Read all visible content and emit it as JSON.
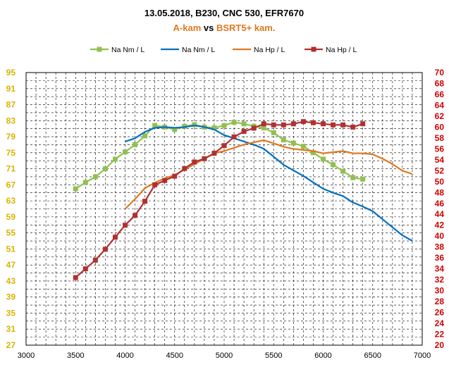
{
  "chart_data": {
    "type": "line",
    "title": "13.05.2018, B230, CNC 530, EFR7670",
    "subtitle": {
      "part1": "A-kam",
      "part2": " vs ",
      "part3": "BSRT5+ kam."
    },
    "xlim": [
      3000,
      7000
    ],
    "x_ticks": [
      "3000",
      "3500",
      "4000",
      "4500",
      "5000",
      "5500",
      "6000",
      "6500",
      "7000"
    ],
    "ylim_left": [
      27,
      95
    ],
    "y_ticks_left": [
      "27",
      "31",
      "35",
      "39",
      "43",
      "47",
      "51",
      "55",
      "59",
      "63",
      "67",
      "71",
      "75",
      "79",
      "83",
      "87",
      "91",
      "95"
    ],
    "ylim_right": [
      20,
      70
    ],
    "y_ticks_right": [
      "20",
      "22",
      "24",
      "26",
      "28",
      "30",
      "32",
      "34",
      "36",
      "38",
      "40",
      "42",
      "44",
      "46",
      "48",
      "50",
      "52",
      "54",
      "56",
      "58",
      "60",
      "62",
      "64",
      "66",
      "68",
      "70"
    ],
    "grid": true,
    "legend_position": "top",
    "series": [
      {
        "name": "Na Nm / L",
        "axis": "left",
        "color": "#92c050",
        "marker": "square",
        "x": [
          3500,
          3600,
          3700,
          3800,
          3900,
          4000,
          4100,
          4200,
          4300,
          4400,
          4500,
          4600,
          4700,
          4800,
          4900,
          5000,
          5100,
          5200,
          5300,
          5400,
          5500,
          5600,
          5700,
          5800,
          5900,
          6000,
          6100,
          6200,
          6300,
          6400
        ],
        "y": [
          66,
          67.6,
          69,
          71,
          73.4,
          75.2,
          77,
          79.2,
          81.8,
          81.4,
          80.8,
          81.6,
          82,
          81.4,
          81.2,
          81.8,
          82.6,
          82.2,
          81.6,
          81.2,
          80,
          78.2,
          77.4,
          76.6,
          75,
          73.4,
          72,
          70.4,
          68.8,
          68.4
        ]
      },
      {
        "name": "Na Nm / L",
        "axis": "left",
        "color": "#0070c0",
        "marker": "none",
        "x": [
          4000,
          4100,
          4200,
          4300,
          4400,
          4500,
          4600,
          4700,
          4800,
          4900,
          5000,
          5100,
          5200,
          5300,
          5400,
          5500,
          5600,
          5700,
          5800,
          5900,
          6000,
          6100,
          6200,
          6300,
          6400,
          6500,
          6600,
          6700,
          6800,
          6900
        ],
        "y": [
          77.8,
          78.6,
          80.2,
          81.2,
          81.4,
          81.2,
          81.4,
          81.8,
          81.4,
          80.8,
          79.4,
          78.6,
          77.8,
          77,
          76,
          74,
          72,
          70.6,
          69.2,
          67.6,
          66,
          65,
          64.2,
          62.6,
          61.6,
          60.4,
          58.4,
          56.4,
          54.4,
          53
        ]
      },
      {
        "name": "Na Hp / L",
        "axis": "right",
        "color": "#e07820",
        "marker": "none",
        "x": [
          4000,
          4100,
          4200,
          4300,
          4400,
          4500,
          4600,
          4700,
          4800,
          4900,
          5000,
          5100,
          5200,
          5300,
          5400,
          5500,
          5600,
          5700,
          5800,
          5900,
          6000,
          6100,
          6200,
          6300,
          6400,
          6500,
          6600,
          6700,
          6800,
          6900
        ],
        "y": [
          45,
          46.8,
          48.8,
          49.8,
          50.6,
          51.2,
          52.2,
          53.2,
          54.2,
          55.2,
          55.6,
          56.2,
          56.8,
          57.2,
          57.6,
          57,
          56.4,
          56,
          55.8,
          55.6,
          55.2,
          55.4,
          55.6,
          55.2,
          55.2,
          55,
          54.2,
          53.2,
          52,
          51.4
        ]
      },
      {
        "name": "Na Hp / L",
        "axis": "right",
        "color": "#b03030",
        "marker": "square",
        "x": [
          3500,
          3600,
          3700,
          3800,
          3900,
          4000,
          4100,
          4200,
          4300,
          4400,
          4500,
          4600,
          4700,
          4800,
          4900,
          5000,
          5100,
          5200,
          5300,
          5400,
          5500,
          5600,
          5700,
          5800,
          5900,
          6000,
          6100,
          6200,
          6300,
          6400
        ],
        "y": [
          32.4,
          34,
          35.6,
          37.6,
          39.8,
          42,
          43.8,
          46.4,
          49.4,
          50.2,
          51,
          52.4,
          53.6,
          54.2,
          55.2,
          56.6,
          58.2,
          59.2,
          59.8,
          60.6,
          60.4,
          60.4,
          60.6,
          61,
          60.8,
          60.6,
          60.4,
          60.4,
          60,
          60.6
        ]
      }
    ]
  }
}
